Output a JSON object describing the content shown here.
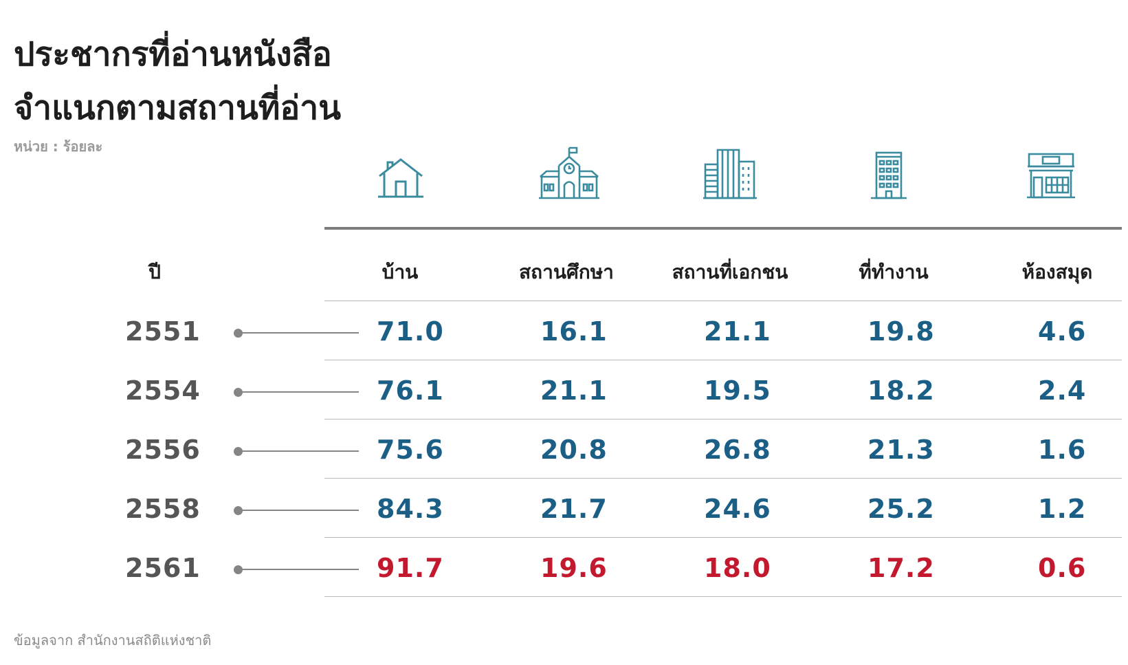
{
  "title_lines": [
    "ประชากรที่อ่านหนังสือ",
    "จำแนกตามสถานที่อ่าน"
  ],
  "unit_label": "หน่วย : ร้อยละ",
  "source_label": "ข้อมูลจาก  สำนักงานสถิติแห่งชาติ",
  "year_header": "ปี",
  "colors": {
    "teal": "#3a8b9e",
    "blue": "#1b5f86",
    "red": "#c2192f",
    "gray": "#555555"
  },
  "chart_data": {
    "type": "table",
    "columns": [
      {
        "label": "บ้าน",
        "icon": "house-icon"
      },
      {
        "label": "สถานศึกษา",
        "icon": "school-icon"
      },
      {
        "label": "สถานที่เอกชน",
        "icon": "office-buildings-icon"
      },
      {
        "label": "ที่ทำงาน",
        "icon": "workplace-building-icon"
      },
      {
        "label": "ห้องสมุด",
        "icon": "library-icon"
      }
    ],
    "rows": [
      {
        "year": "2551",
        "values": [
          "71.0",
          "16.1",
          "21.1",
          "19.8",
          "4.6"
        ]
      },
      {
        "year": "2554",
        "values": [
          "76.1",
          "21.1",
          "19.5",
          "18.2",
          "2.4"
        ]
      },
      {
        "year": "2556",
        "values": [
          "75.6",
          "20.8",
          "26.8",
          "21.3",
          "1.6"
        ]
      },
      {
        "year": "2558",
        "values": [
          "84.3",
          "21.7",
          "24.6",
          "25.2",
          "1.2"
        ]
      },
      {
        "year": "2561",
        "values": [
          "91.7",
          "19.6",
          "18.0",
          "17.2",
          "0.6"
        ]
      }
    ]
  }
}
